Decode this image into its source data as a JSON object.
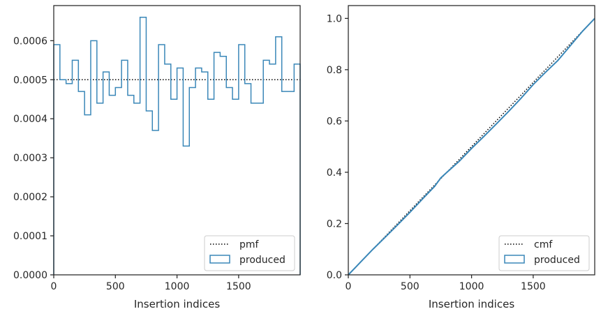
{
  "chart_data": [
    {
      "type": "step",
      "xlabel": "Insertion indices",
      "ylabel": "",
      "xlim": [
        0,
        1999
      ],
      "ylim": [
        0,
        0.00069
      ],
      "xticks": [
        0,
        500,
        1000,
        1500
      ],
      "xtick_labels": [
        "0",
        "500",
        "1000",
        "1500"
      ],
      "yticks": [
        0,
        0.0001,
        0.0002,
        0.0003,
        0.0004,
        0.0005,
        0.0006
      ],
      "ytick_labels": [
        "0.0000",
        "0.0001",
        "0.0002",
        "0.0003",
        "0.0004",
        "0.0005",
        "0.0006"
      ],
      "legend_position": "lower-right",
      "series": [
        {
          "name": "pmf",
          "style": "dotted",
          "color": "#000000",
          "x": [
            0,
            1999
          ],
          "y": [
            0.0005,
            0.0005
          ]
        },
        {
          "name": "produced",
          "style": "step-histogram",
          "color": "#3a87b8",
          "bin_width": 50,
          "values": [
            0.00059,
            0.0005,
            0.00049,
            0.00055,
            0.00047,
            0.00041,
            0.0006,
            0.00044,
            0.00052,
            0.00046,
            0.00048,
            0.00055,
            0.00046,
            0.00044,
            0.00066,
            0.00042,
            0.00037,
            0.00059,
            0.00054,
            0.00045,
            0.00053,
            0.00033,
            0.00048,
            0.00053,
            0.00052,
            0.00045,
            0.00057,
            0.00056,
            0.00048,
            0.00045,
            0.00059,
            0.00049,
            0.00044,
            0.00044,
            0.00055,
            0.00054,
            0.00061,
            0.00047,
            0.00047,
            0.00054
          ]
        }
      ]
    },
    {
      "type": "line",
      "xlabel": "Insertion indices",
      "ylabel": "",
      "xlim": [
        0,
        1999
      ],
      "ylim": [
        0,
        1.05
      ],
      "xticks": [
        0,
        500,
        1000,
        1500
      ],
      "xtick_labels": [
        "0",
        "500",
        "1000",
        "1500"
      ],
      "yticks": [
        0,
        0.2,
        0.4,
        0.6,
        0.8,
        1.0
      ],
      "ytick_labels": [
        "0.0",
        "0.2",
        "0.4",
        "0.6",
        "0.8",
        "1.0"
      ],
      "legend_position": "lower-right",
      "series": [
        {
          "name": "cmf",
          "style": "dotted",
          "color": "#000000",
          "x": [
            0,
            1999
          ],
          "y": [
            0,
            1.0
          ]
        },
        {
          "name": "produced",
          "style": "line",
          "color": "#3a87b8",
          "x": [
            0,
            100,
            200,
            300,
            400,
            500,
            600,
            700,
            750,
            800,
            900,
            1000,
            1100,
            1200,
            1300,
            1400,
            1500,
            1600,
            1700,
            1800,
            1900,
            1999
          ],
          "y": [
            0,
            0.05,
            0.1,
            0.147,
            0.195,
            0.244,
            0.295,
            0.345,
            0.378,
            0.4,
            0.443,
            0.493,
            0.54,
            0.588,
            0.637,
            0.688,
            0.742,
            0.79,
            0.836,
            0.893,
            0.95,
            1.0
          ]
        }
      ]
    }
  ]
}
